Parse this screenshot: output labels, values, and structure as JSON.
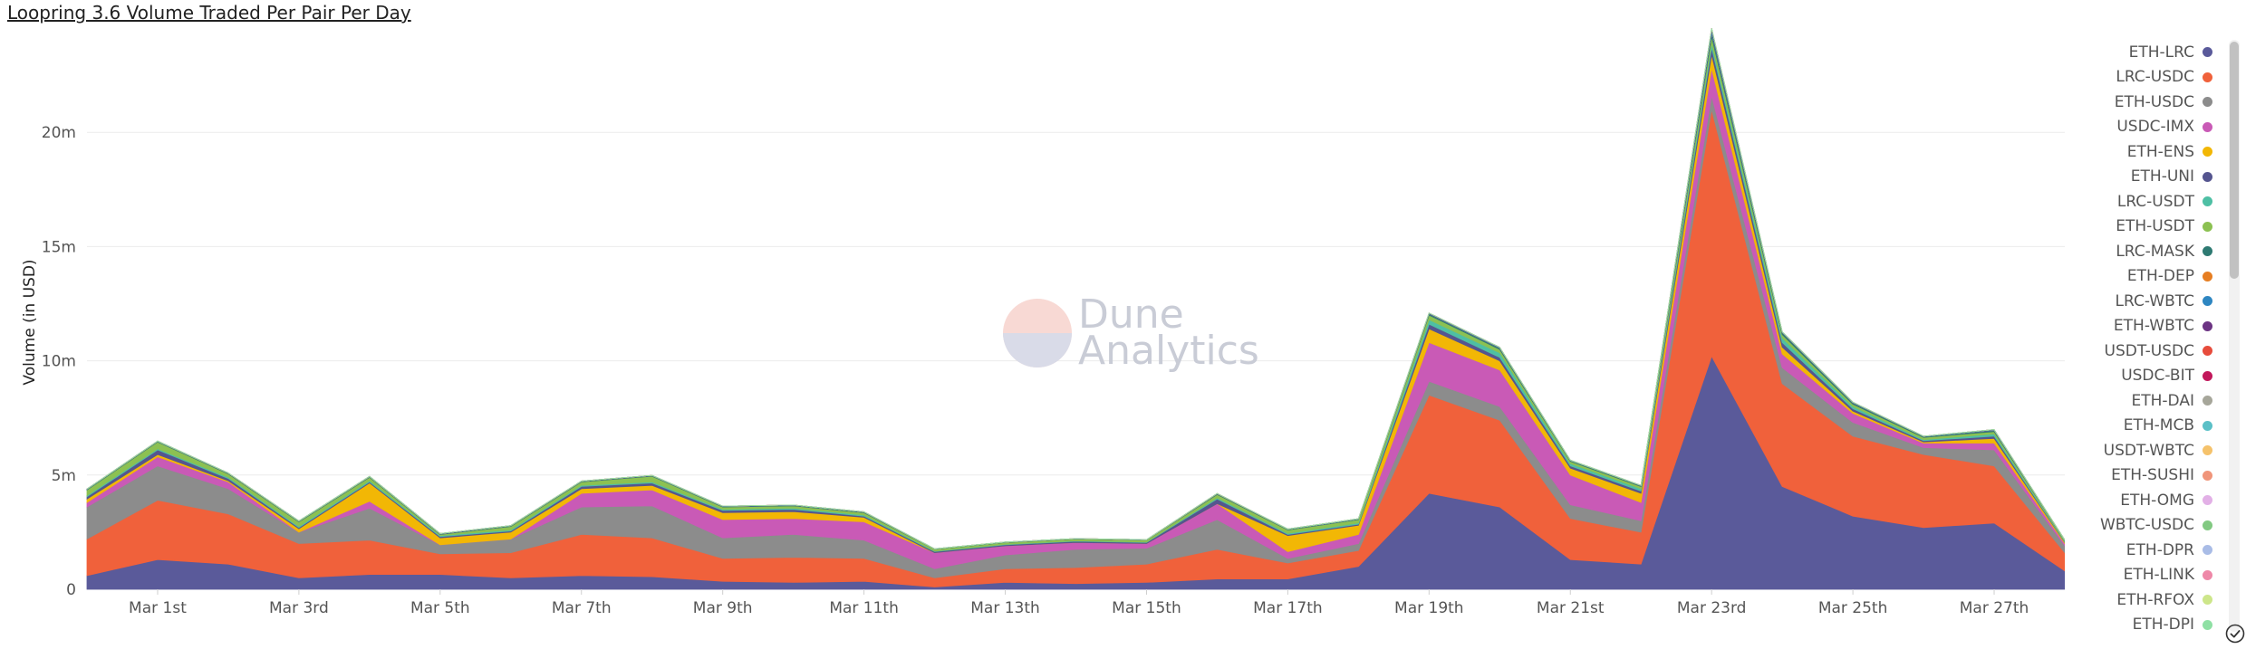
{
  "title": "Loopring 3.6 Volume Traded Per Pair Per Day",
  "watermark": {
    "line1": "Dune",
    "line2": "Analytics"
  },
  "chart_data": {
    "type": "area",
    "stacked": true,
    "title": "Loopring 3.6 Volume Traded Per Pair Per Day",
    "xlabel": "",
    "ylabel": "Volume (in USD)",
    "ylim": [
      0,
      25000000
    ],
    "yticks": [
      {
        "value": 0,
        "label": "0"
      },
      {
        "value": 5000000,
        "label": "5m"
      },
      {
        "value": 10000000,
        "label": "10m"
      },
      {
        "value": 15000000,
        "label": "15m"
      },
      {
        "value": 20000000,
        "label": "20m"
      }
    ],
    "x": [
      0,
      1,
      2,
      3,
      4,
      5,
      6,
      7,
      8,
      9,
      10,
      11,
      12,
      13,
      14,
      15,
      16,
      17,
      18,
      19,
      20,
      21,
      22,
      23,
      24,
      25,
      26,
      27,
      28
    ],
    "xticks": [
      {
        "value": 1,
        "label": "Mar 1st"
      },
      {
        "value": 3,
        "label": "Mar 3rd"
      },
      {
        "value": 5,
        "label": "Mar 5th"
      },
      {
        "value": 7,
        "label": "Mar 7th"
      },
      {
        "value": 9,
        "label": "Mar 9th"
      },
      {
        "value": 11,
        "label": "Mar 11th"
      },
      {
        "value": 13,
        "label": "Mar 13th"
      },
      {
        "value": 15,
        "label": "Mar 15th"
      },
      {
        "value": 17,
        "label": "Mar 17th"
      },
      {
        "value": 19,
        "label": "Mar 19th"
      },
      {
        "value": 21,
        "label": "Mar 21st"
      },
      {
        "value": 23,
        "label": "Mar 23rd"
      },
      {
        "value": 25,
        "label": "Mar 25th"
      },
      {
        "value": 27,
        "label": "Mar 27th"
      }
    ],
    "legend_position": "right",
    "grid": true,
    "series": [
      {
        "name": "ETH-LRC",
        "color": "#5a5a9a",
        "values": [
          600000,
          1300000,
          1100000,
          500000,
          650000,
          650000,
          500000,
          600000,
          550000,
          350000,
          300000,
          350000,
          100000,
          300000,
          250000,
          300000,
          450000,
          450000,
          1000000,
          4200000,
          3600000,
          1300000,
          1100000,
          10200000,
          4500000,
          3200000,
          2700000,
          2900000,
          800000
        ]
      },
      {
        "name": "LRC-USDC",
        "color": "#f0613b",
        "values": [
          1600000,
          2600000,
          2200000,
          1500000,
          1500000,
          900000,
          1100000,
          1800000,
          1700000,
          1000000,
          1100000,
          1000000,
          400000,
          600000,
          700000,
          800000,
          1300000,
          700000,
          700000,
          4300000,
          3800000,
          1800000,
          1400000,
          10800000,
          4500000,
          3500000,
          3200000,
          2500000,
          800000
        ]
      },
      {
        "name": "ETH-USDC",
        "color": "#8c8c8c",
        "values": [
          1400000,
          1500000,
          1100000,
          500000,
          1400000,
          400000,
          600000,
          1200000,
          1400000,
          900000,
          1000000,
          800000,
          400000,
          600000,
          800000,
          700000,
          1300000,
          200000,
          300000,
          600000,
          600000,
          600000,
          500000,
          600000,
          700000,
          600000,
          300000,
          700000,
          300000
        ]
      },
      {
        "name": "USDC-IMX",
        "color": "#c95ab6",
        "values": [
          200000,
          400000,
          300000,
          0,
          300000,
          0,
          0,
          600000,
          700000,
          800000,
          700000,
          800000,
          700000,
          400000,
          300000,
          200000,
          700000,
          300000,
          400000,
          1700000,
          1600000,
          1300000,
          800000,
          1200000,
          600000,
          400000,
          200000,
          300000,
          100000
        ]
      },
      {
        "name": "ETH-ENS",
        "color": "#f2b705",
        "values": [
          150000,
          100000,
          50000,
          150000,
          800000,
          300000,
          300000,
          200000,
          200000,
          300000,
          300000,
          200000,
          0,
          0,
          0,
          0,
          0,
          700000,
          400000,
          600000,
          400000,
          300000,
          400000,
          600000,
          300000,
          100000,
          50000,
          200000,
          50000
        ]
      },
      {
        "name": "ETH-UNI",
        "color": "#55558f",
        "values": [
          100000,
          200000,
          100000,
          50000,
          50000,
          50000,
          50000,
          100000,
          100000,
          100000,
          100000,
          50000,
          50000,
          50000,
          50000,
          50000,
          200000,
          50000,
          50000,
          200000,
          150000,
          100000,
          100000,
          300000,
          200000,
          100000,
          50000,
          100000,
          20000
        ]
      },
      {
        "name": "LRC-USDT",
        "color": "#4ebfa4",
        "values": [
          50000,
          50000,
          50000,
          50000,
          50000,
          50000,
          50000,
          50000,
          50000,
          50000,
          50000,
          50000,
          20000,
          20000,
          20000,
          20000,
          50000,
          50000,
          50000,
          200000,
          200000,
          100000,
          100000,
          200000,
          200000,
          100000,
          50000,
          100000,
          20000
        ]
      },
      {
        "name": "ETH-USDT",
        "color": "#8cc152",
        "values": [
          250000,
          300000,
          150000,
          200000,
          150000,
          50000,
          150000,
          150000,
          250000,
          100000,
          100000,
          100000,
          80000,
          80000,
          80000,
          80000,
          150000,
          150000,
          150000,
          200000,
          150000,
          100000,
          100000,
          300000,
          150000,
          100000,
          100000,
          100000,
          50000
        ]
      },
      {
        "name": "LRC-MASK",
        "color": "#2e7a72",
        "values": [
          20000,
          20000,
          20000,
          20000,
          20000,
          20000,
          20000,
          20000,
          20000,
          20000,
          20000,
          20000,
          10000,
          10000,
          10000,
          10000,
          20000,
          20000,
          20000,
          50000,
          50000,
          30000,
          30000,
          150000,
          80000,
          50000,
          30000,
          50000,
          10000
        ]
      },
      {
        "name": "ETH-DEP",
        "color": "#e67e22",
        "values": [
          0,
          0,
          0,
          0,
          0,
          0,
          0,
          0,
          0,
          0,
          0,
          0,
          0,
          0,
          0,
          0,
          0,
          0,
          0,
          0,
          0,
          0,
          0,
          0,
          0,
          0,
          0,
          0,
          0
        ]
      },
      {
        "name": "LRC-WBTC",
        "color": "#2e86c1",
        "values": [
          10000,
          10000,
          10000,
          10000,
          10000,
          10000,
          10000,
          10000,
          10000,
          10000,
          10000,
          10000,
          5000,
          5000,
          5000,
          5000,
          10000,
          10000,
          10000,
          20000,
          20000,
          10000,
          10000,
          100000,
          20000,
          20000,
          10000,
          20000,
          5000
        ]
      },
      {
        "name": "ETH-WBTC",
        "color": "#6c3483",
        "values": [
          10000,
          10000,
          10000,
          10000,
          10000,
          10000,
          10000,
          10000,
          10000,
          10000,
          10000,
          10000,
          5000,
          5000,
          5000,
          5000,
          10000,
          10000,
          10000,
          20000,
          20000,
          10000,
          10000,
          100000,
          20000,
          20000,
          10000,
          20000,
          5000
        ]
      },
      {
        "name": "USDT-USDC",
        "color": "#e74c3c",
        "values": [
          0,
          0,
          0,
          0,
          0,
          0,
          0,
          0,
          0,
          0,
          0,
          0,
          0,
          0,
          0,
          0,
          0,
          0,
          0,
          0,
          0,
          0,
          0,
          0,
          0,
          0,
          0,
          0,
          0
        ]
      },
      {
        "name": "USDC-BIT",
        "color": "#c2185b",
        "values": [
          0,
          0,
          0,
          0,
          0,
          0,
          0,
          0,
          0,
          0,
          0,
          0,
          0,
          0,
          0,
          0,
          0,
          0,
          0,
          0,
          0,
          0,
          0,
          0,
          0,
          0,
          0,
          0,
          0
        ]
      },
      {
        "name": "ETH-DAI",
        "color": "#a6a69a",
        "values": [
          0,
          0,
          0,
          0,
          0,
          0,
          0,
          0,
          0,
          0,
          0,
          0,
          0,
          0,
          0,
          0,
          0,
          0,
          0,
          0,
          0,
          0,
          0,
          0,
          0,
          0,
          0,
          0,
          0
        ]
      },
      {
        "name": "ETH-MCB",
        "color": "#5bc0c7",
        "values": [
          0,
          0,
          0,
          0,
          0,
          0,
          0,
          0,
          0,
          0,
          0,
          0,
          0,
          0,
          0,
          0,
          0,
          0,
          0,
          0,
          0,
          0,
          0,
          0,
          0,
          0,
          0,
          0,
          0
        ]
      },
      {
        "name": "USDT-WBTC",
        "color": "#f5c26b",
        "values": [
          0,
          0,
          0,
          0,
          0,
          0,
          0,
          0,
          0,
          0,
          0,
          0,
          0,
          0,
          0,
          0,
          0,
          0,
          0,
          0,
          0,
          0,
          0,
          0,
          0,
          0,
          0,
          0,
          0
        ]
      },
      {
        "name": "ETH-SUSHI",
        "color": "#f0957a",
        "values": [
          0,
          0,
          0,
          0,
          0,
          0,
          0,
          0,
          0,
          0,
          0,
          0,
          0,
          0,
          0,
          0,
          0,
          0,
          0,
          0,
          0,
          0,
          0,
          0,
          0,
          0,
          0,
          0,
          0
        ]
      },
      {
        "name": "ETH-OMG",
        "color": "#e2b0e6",
        "values": [
          0,
          0,
          0,
          0,
          0,
          0,
          0,
          0,
          0,
          0,
          0,
          0,
          0,
          0,
          0,
          0,
          0,
          0,
          0,
          0,
          0,
          0,
          0,
          0,
          0,
          0,
          0,
          0,
          0
        ]
      },
      {
        "name": "WBTC-USDC",
        "color": "#82c982",
        "values": [
          0,
          0,
          0,
          0,
          0,
          0,
          0,
          0,
          0,
          0,
          0,
          0,
          0,
          0,
          0,
          0,
          0,
          0,
          0,
          0,
          0,
          0,
          0,
          0,
          0,
          0,
          0,
          0,
          0
        ]
      },
      {
        "name": "ETH-DPR",
        "color": "#a9bce6",
        "values": [
          0,
          0,
          0,
          0,
          0,
          0,
          0,
          0,
          0,
          0,
          0,
          0,
          0,
          0,
          0,
          0,
          0,
          0,
          0,
          0,
          0,
          0,
          0,
          0,
          0,
          0,
          0,
          0,
          0
        ]
      },
      {
        "name": "ETH-LINK",
        "color": "#ee88a8",
        "values": [
          0,
          0,
          0,
          0,
          0,
          0,
          0,
          0,
          0,
          0,
          0,
          0,
          0,
          0,
          0,
          0,
          0,
          0,
          0,
          0,
          0,
          0,
          0,
          0,
          0,
          0,
          0,
          0,
          0
        ]
      },
      {
        "name": "ETH-RFOX",
        "color": "#cde68a",
        "values": [
          0,
          0,
          0,
          0,
          0,
          0,
          0,
          0,
          0,
          0,
          0,
          0,
          0,
          0,
          0,
          0,
          0,
          0,
          0,
          0,
          0,
          0,
          0,
          0,
          0,
          0,
          0,
          0,
          0
        ]
      },
      {
        "name": "ETH-DPI",
        "color": "#8fe0a4",
        "values": [
          0,
          0,
          0,
          0,
          0,
          0,
          0,
          0,
          0,
          0,
          0,
          0,
          0,
          0,
          0,
          0,
          0,
          0,
          0,
          0,
          0,
          0,
          0,
          0,
          0,
          0,
          0,
          0,
          0
        ]
      }
    ]
  }
}
